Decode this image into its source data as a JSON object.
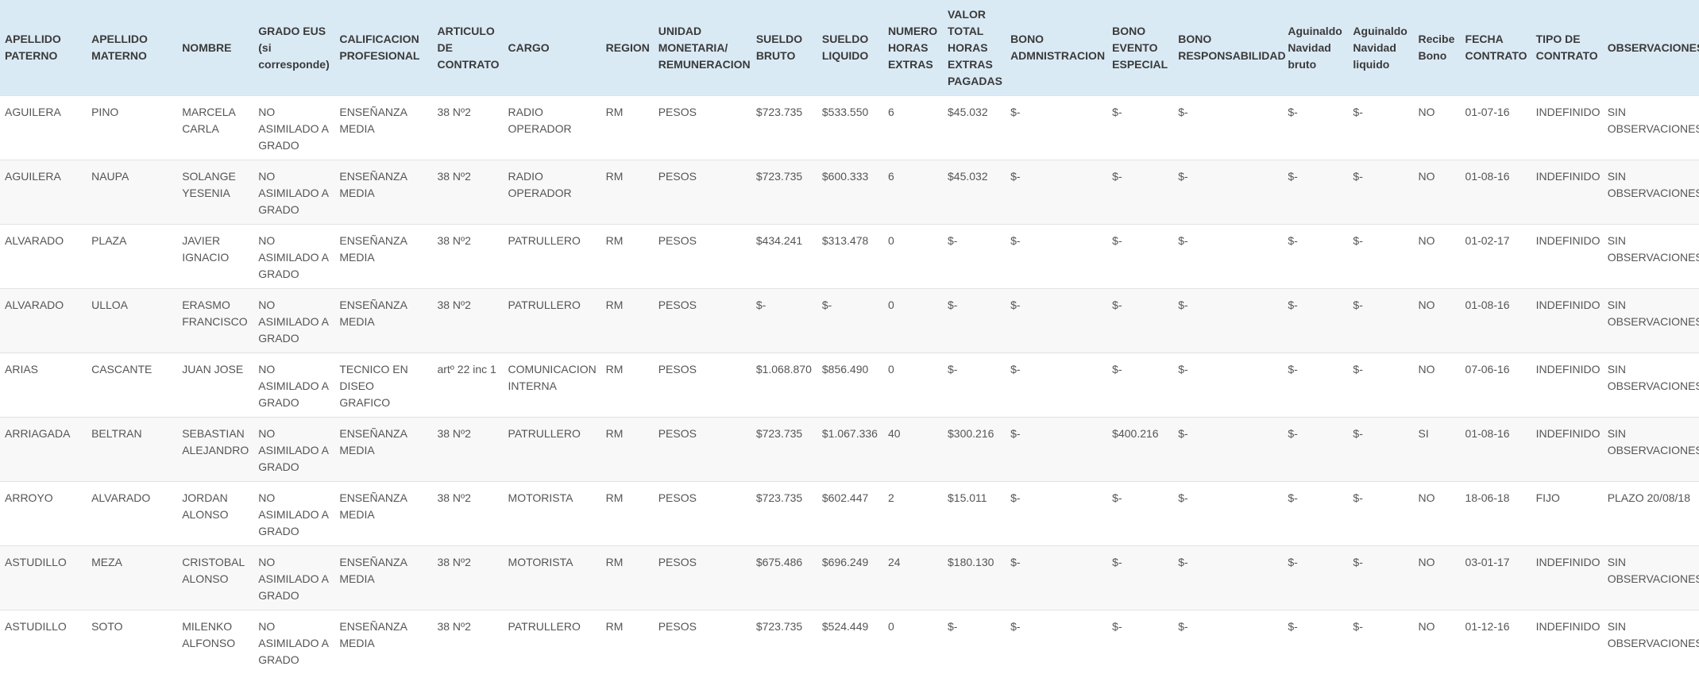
{
  "table": {
    "headers": [
      "APELLIDO PATERNO",
      "APELLIDO MATERNO",
      "NOMBRE",
      "GRADO EUS (si corresponde)",
      "CALIFICACION PROFESIONAL",
      "ARTICULO DE CONTRATO",
      "CARGO",
      "REGION",
      "UNIDAD MONETARIA/ REMUNERACION",
      "SUELDO BRUTO",
      "SUELDO LIQUIDO",
      "NUMERO HORAS EXTRAS",
      "VALOR TOTAL HORAS EXTRAS PAGADAS",
      "BONO ADMNISTRACION",
      "BONO EVENTO ESPECIAL",
      "BONO RESPONSABILIDAD",
      "Aguinaldo Navidad bruto",
      "Aguinaldo Navidad liquido",
      "Recibe Bono",
      "FECHA CONTRATO",
      "TIPO DE CONTRATO",
      "OBSERVACIONES"
    ],
    "rows": [
      [
        "AGUILERA",
        "PINO",
        "MARCELA CARLA",
        "NO ASIMILADO A GRADO",
        "ENSEÑANZA MEDIA",
        "38 Nº2",
        "RADIO OPERADOR",
        "RM",
        "PESOS",
        "$723.735",
        "$533.550",
        "6",
        "$45.032",
        "$-",
        "$-",
        "$-",
        "$-",
        "$-",
        "NO",
        "01-07-16",
        "INDEFINIDO",
        "SIN OBSERVACIONES"
      ],
      [
        "AGUILERA",
        "NAUPA",
        "SOLANGE YESENIA",
        "NO ASIMILADO A GRADO",
        "ENSEÑANZA MEDIA",
        "38 Nº2",
        "RADIO OPERADOR",
        "RM",
        "PESOS",
        "$723.735",
        "$600.333",
        "6",
        "$45.032",
        "$-",
        "$-",
        "$-",
        "$-",
        "$-",
        "NO",
        "01-08-16",
        "INDEFINIDO",
        "SIN OBSERVACIONES"
      ],
      [
        "ALVARADO",
        "PLAZA",
        "JAVIER IGNACIO",
        "NO ASIMILADO A GRADO",
        "ENSEÑANZA MEDIA",
        "38 Nº2",
        "PATRULLERO",
        "RM",
        "PESOS",
        "$434.241",
        "$313.478",
        "0",
        "$-",
        "$-",
        "$-",
        "$-",
        "$-",
        "$-",
        "NO",
        "01-02-17",
        "INDEFINIDO",
        "SIN OBSERVACIONES"
      ],
      [
        "ALVARADO",
        "ULLOA",
        "ERASMO FRANCISCO",
        "NO ASIMILADO A GRADO",
        "ENSEÑANZA MEDIA",
        "38 Nº2",
        "PATRULLERO",
        "RM",
        "PESOS",
        "$-",
        "$-",
        "0",
        "$-",
        "$-",
        "$-",
        "$-",
        "$-",
        "$-",
        "NO",
        "01-08-16",
        "INDEFINIDO",
        "SIN OBSERVACIONES"
      ],
      [
        "ARIAS",
        "CASCANTE",
        "JUAN JOSE",
        "NO ASIMILADO A GRADO",
        "TECNICO EN DISEO GRAFICO",
        "artº 22 inc 1",
        "COMUNICACION INTERNA",
        "RM",
        "PESOS",
        "$1.068.870",
        "$856.490",
        "0",
        "$-",
        "$-",
        "$-",
        "$-",
        "$-",
        "$-",
        "NO",
        "07-06-16",
        "INDEFINIDO",
        "SIN OBSERVACIONES"
      ],
      [
        "ARRIAGADA",
        "BELTRAN",
        "SEBASTIAN ALEJANDRO",
        "NO ASIMILADO A GRADO",
        "ENSEÑANZA MEDIA",
        "38 Nº2",
        "PATRULLERO",
        "RM",
        "PESOS",
        "$723.735",
        "$1.067.336",
        "40",
        "$300.216",
        "$-",
        "$400.216",
        "$-",
        "$-",
        "$-",
        "SI",
        "01-08-16",
        "INDEFINIDO",
        "SIN OBSERVACIONES"
      ],
      [
        "ARROYO",
        "ALVARADO",
        "JORDAN ALONSO",
        "NO ASIMILADO A GRADO",
        "ENSEÑANZA MEDIA",
        "38 Nº2",
        "MOTORISTA",
        "RM",
        "PESOS",
        "$723.735",
        "$602.447",
        "2",
        "$15.011",
        "$-",
        "$-",
        "$-",
        "$-",
        "$-",
        "NO",
        "18-06-18",
        "FIJO",
        "PLAZO 20/08/18"
      ],
      [
        "ASTUDILLO",
        "MEZA",
        "CRISTOBAL ALONSO",
        "NO ASIMILADO A GRADO",
        "ENSEÑANZA MEDIA",
        "38 Nº2",
        "MOTORISTA",
        "RM",
        "PESOS",
        "$675.486",
        "$696.249",
        "24",
        "$180.130",
        "$-",
        "$-",
        "$-",
        "$-",
        "$-",
        "NO",
        "03-01-17",
        "INDEFINIDO",
        "SIN OBSERVACIONES"
      ],
      [
        "ASTUDILLO",
        "SOTO",
        "MILENKO ALFONSO",
        "NO ASIMILADO A GRADO",
        "ENSEÑANZA MEDIA",
        "38 Nº2",
        "PATRULLERO",
        "RM",
        "PESOS",
        "$723.735",
        "$524.449",
        "0",
        "$-",
        "$-",
        "$-",
        "$-",
        "$-",
        "$-",
        "NO",
        "01-12-16",
        "INDEFINIDO",
        "SIN OBSERVACIONES"
      ]
    ]
  }
}
